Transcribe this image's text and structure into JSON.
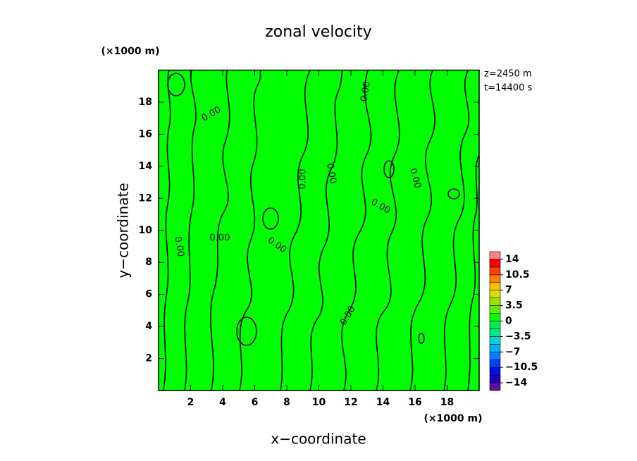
{
  "chart_data": {
    "type": "contour",
    "title": "zonal velocity",
    "x_label": "x−coordinate",
    "y_label": "y−coordinate",
    "x_unit": "(×1000 m)",
    "y_unit": "(×1000 m)",
    "annotations": [
      "z=2450 m",
      "t=14400 s"
    ],
    "xlim": [
      0,
      20
    ],
    "ylim": [
      0,
      20
    ],
    "xticks": [
      2,
      4,
      6,
      8,
      10,
      12,
      14,
      16,
      18
    ],
    "yticks": [
      2,
      4,
      6,
      8,
      10,
      12,
      14,
      16,
      18
    ],
    "background_color": "#00ff00",
    "contour_level": 0,
    "contour_label": "0.00",
    "colorbar": {
      "clim": [
        -15.75,
        15.75
      ],
      "colors": [
        "#5a10a0",
        "#2000c0",
        "#0010e0",
        "#0040ff",
        "#0080ff",
        "#00b0ff",
        "#00d8d8",
        "#00e890",
        "#00f050",
        "#00ff00",
        "#60f000",
        "#a0e000",
        "#d8e000",
        "#ffc000",
        "#ff8000",
        "#ff4000",
        "#ff0000",
        "#ff8080"
      ],
      "ticks": [
        14,
        10.5,
        7,
        3.5,
        0,
        {
          "value": -3.5,
          "label": "−3.5"
        },
        {
          "value": -7,
          "label": "−7"
        },
        {
          "value": -10.5,
          "label": "−10.5"
        },
        {
          "value": -14,
          "label": "−14"
        }
      ]
    }
  }
}
